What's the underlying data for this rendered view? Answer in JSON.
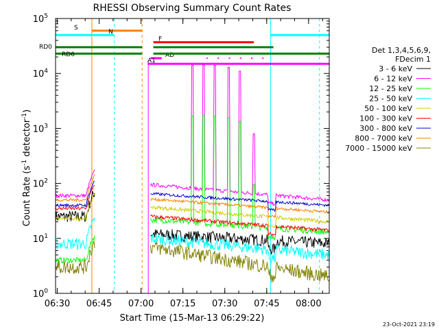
{
  "chart_data": {
    "type": "line",
    "title": "RHESSI Observing Summary Count Rates",
    "xlabel": "Start Time (15-Mar-13 06:29:22)",
    "ylabel": "Count Rate (s^-1 detector^-1)",
    "ylabel_main": "Count Rate (s",
    "ylabel_sup1": "-1",
    "ylabel_mid": " detector",
    "ylabel_sup2": "-1",
    "ylabel_end": ")",
    "yscale": "log",
    "xlim_minutes": [
      0,
      98
    ],
    "ylim": [
      1,
      100000
    ],
    "x_ticks": [
      {
        "label": "06:30",
        "min": 0.6
      },
      {
        "label": "06:45",
        "min": 15.6
      },
      {
        "label": "07:00",
        "min": 30.6
      },
      {
        "label": "07:15",
        "min": 45.6
      },
      {
        "label": "07:30",
        "min": 60.6
      },
      {
        "label": "07:45",
        "min": 75.6
      },
      {
        "label": "08:00",
        "min": 90.6
      }
    ],
    "y_ticks": [
      {
        "base": "10",
        "exp": "0",
        "value": 1
      },
      {
        "base": "10",
        "exp": "1",
        "value": 10
      },
      {
        "base": "10",
        "exp": "2",
        "value": 100
      },
      {
        "base": "10",
        "exp": "3",
        "value": 1000
      },
      {
        "base": "10",
        "exp": "4",
        "value": 10000
      },
      {
        "base": "10",
        "exp": "5",
        "value": 100000
      }
    ],
    "legend_header": [
      "Det 1,3,4,5,6,9,",
      "FDecim 1"
    ],
    "series": [
      {
        "name": "3 - 6 keV",
        "color": "#000000",
        "before": 25,
        "after_start": 12,
        "after_end": 8,
        "noise": 0.25
      },
      {
        "name": "6 - 12 keV",
        "color": "#ff00ff",
        "before": 60,
        "after_start": 95,
        "after_end": 50,
        "noise": 0.08
      },
      {
        "name": "12 - 25 keV",
        "color": "#00ff00",
        "before": 4,
        "after_start": 22,
        "after_end": 13,
        "noise": 0.12
      },
      {
        "name": "25 - 50 keV",
        "color": "#00ffff",
        "before": 8,
        "after_start": 10,
        "after_end": 5,
        "noise": 0.25
      },
      {
        "name": "50 - 100 keV",
        "color": "#cccc00",
        "before": 23,
        "after_start": 37,
        "after_end": 20,
        "noise": 0.08
      },
      {
        "name": "100 - 300 keV",
        "color": "#ff0000",
        "before": 35,
        "after_start": 25,
        "after_end": 14,
        "noise": 0.08
      },
      {
        "name": "300 - 800 keV",
        "color": "#0000cc",
        "before": 40,
        "after_start": 65,
        "after_end": 40,
        "noise": 0.06
      },
      {
        "name": "800 - 7000 keV",
        "color": "#ff8000",
        "before": 50,
        "after_start": 52,
        "after_end": 30,
        "noise": 0.06
      },
      {
        "name": "7000 - 15000 keV",
        "color": "#808000",
        "before": 3,
        "after_start": 7,
        "after_end": 2,
        "noise": 0.3
      }
    ],
    "spikes_min": [
      49,
      53,
      57,
      62,
      66,
      71
    ],
    "spike_peaks": [
      14000,
      15000,
      14000,
      13000,
      11000,
      800
    ],
    "flag_bars": [
      {
        "label": "S",
        "color": "#ff8000",
        "start": 13,
        "end": 31,
        "yval": 60000
      },
      {
        "label": "N",
        "color": "#00ffff",
        "start": 0,
        "end": 21,
        "yval": 50000
      },
      {
        "label": "F",
        "color": "#ff0000",
        "start": 35,
        "end": 71,
        "yval": 37000
      },
      {
        "label": "RD0",
        "color": "#008000",
        "start": 0,
        "end": 31,
        "yval": 30000
      },
      {
        "label": "RD6",
        "color": "#008000",
        "start": 0,
        "end": 31,
        "yval": 23000
      },
      {
        "label": "AD",
        "color": "#ff00ff",
        "start": 34,
        "end": 38,
        "yval": 19000
      },
      {
        "label": "A1",
        "color": "#ff00ff",
        "start": 33,
        "end": 98,
        "yval": 15000
      }
    ],
    "annotations": {
      "date_stamp": "23-Oct-2021 23:19"
    }
  }
}
